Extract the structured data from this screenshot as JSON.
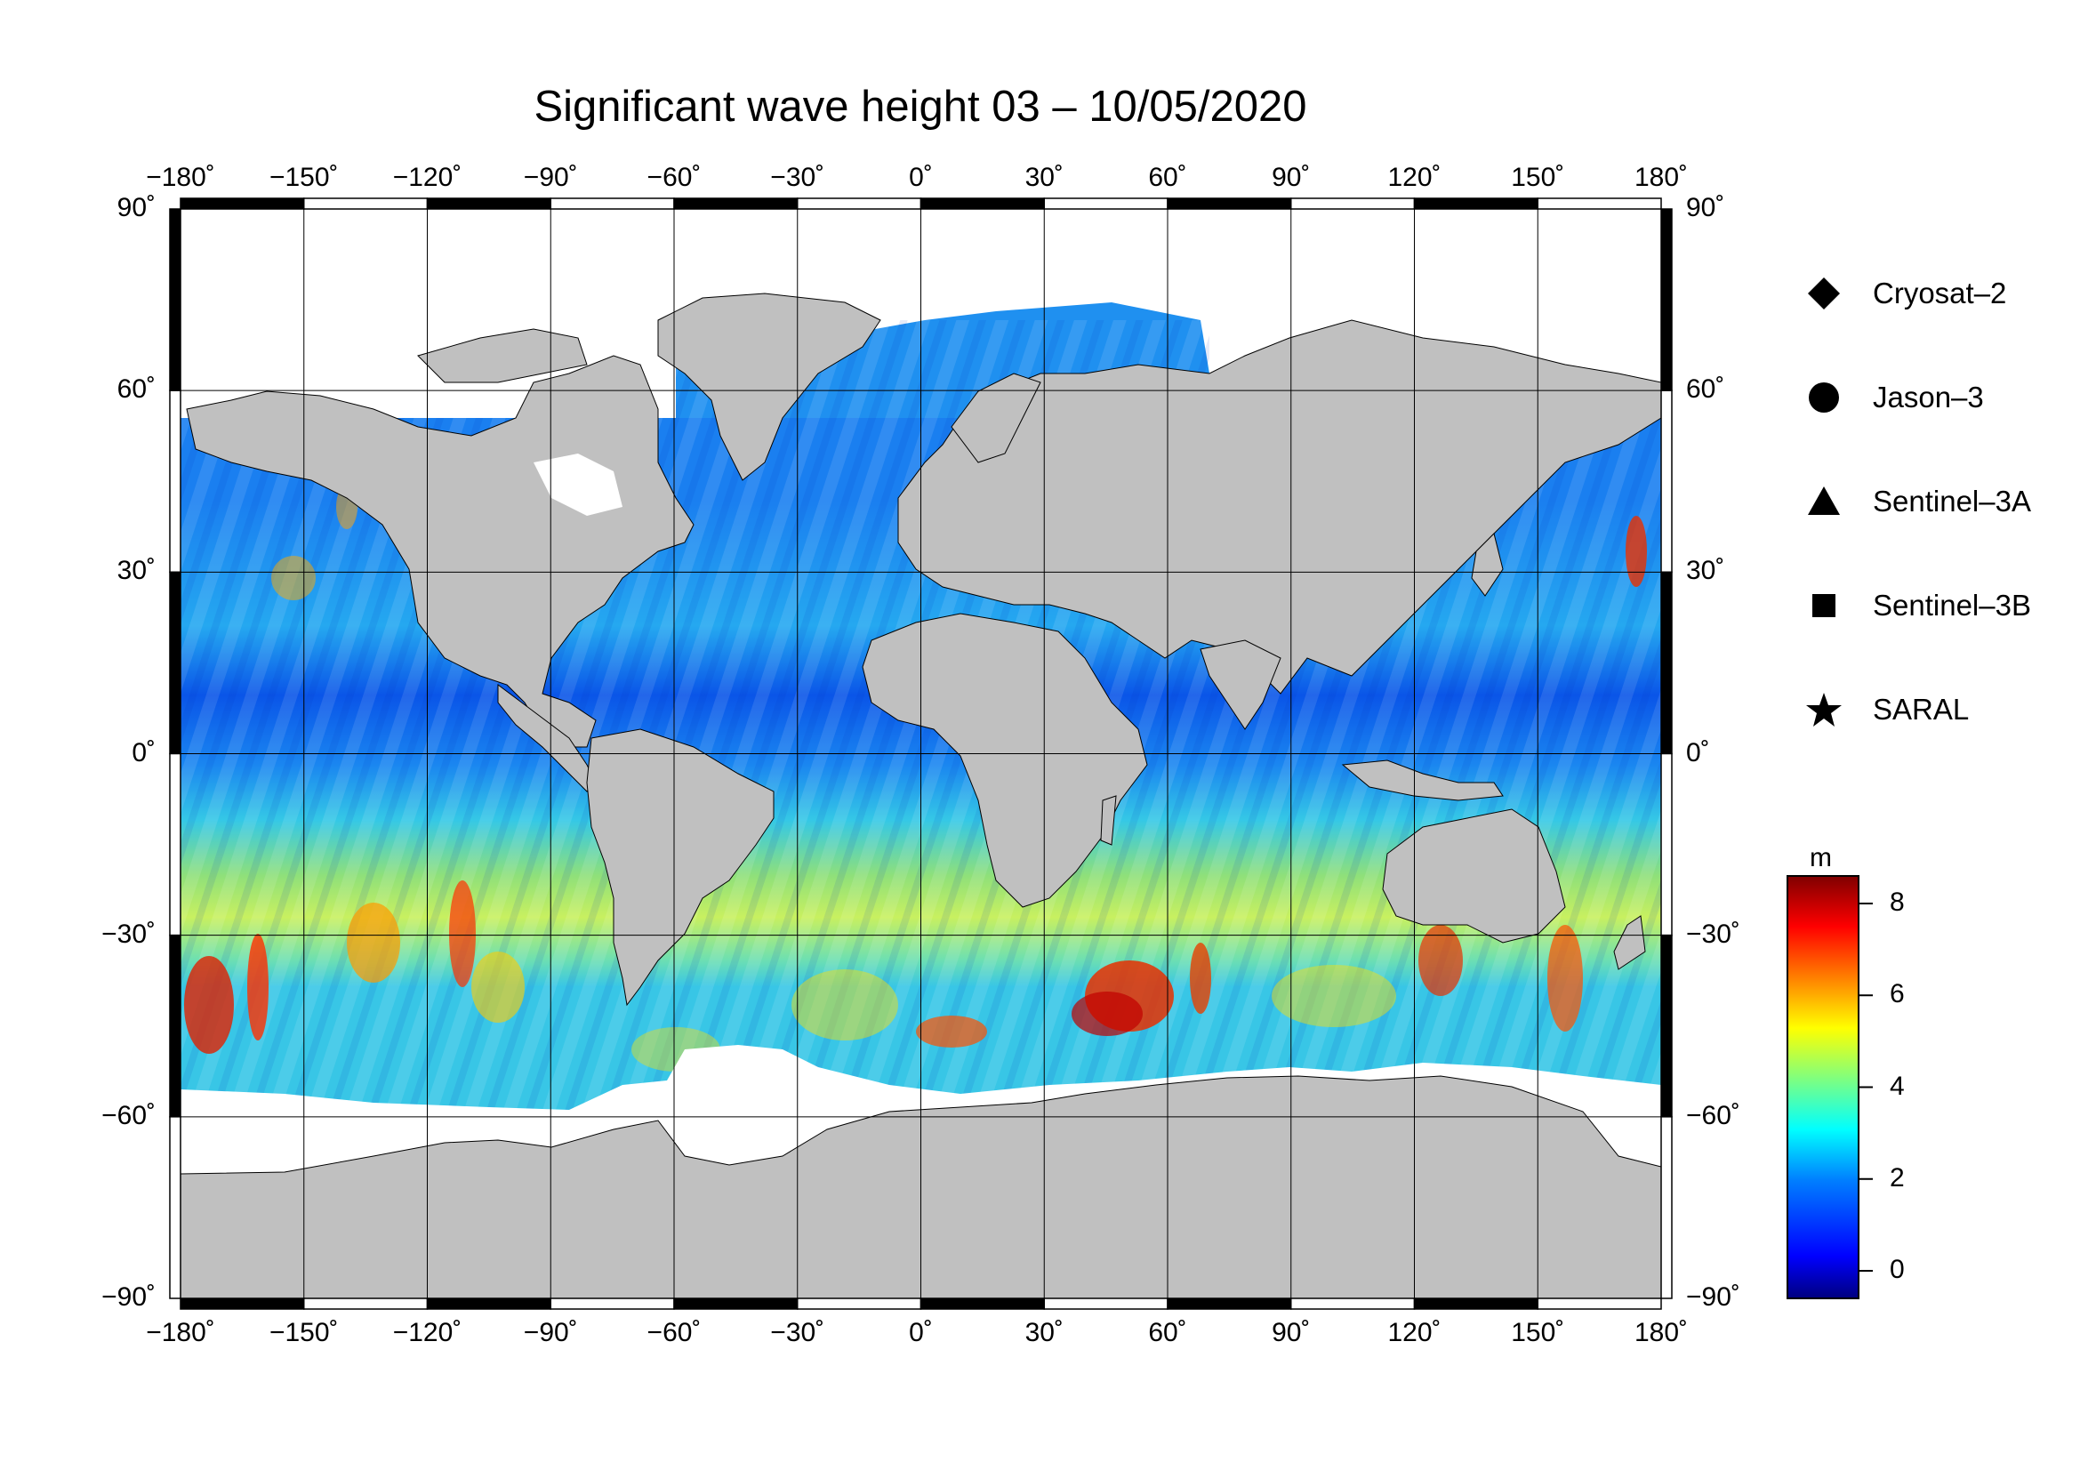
{
  "title": "Significant wave height 03 – 10/05/2020",
  "axes": {
    "top_lon_labels": [
      "−180˚",
      "−150˚",
      "−120˚",
      "−90˚",
      "−60˚",
      "−30˚",
      "0˚",
      "30˚",
      "60˚",
      "90˚",
      "120˚",
      "150˚",
      "180˚"
    ],
    "bottom_lon_labels": [
      "−180˚",
      "−150˚",
      "−120˚",
      "−90˚",
      "−60˚",
      "−30˚",
      "0˚",
      "30˚",
      "60˚",
      "90˚",
      "120˚",
      "150˚",
      "180˚"
    ],
    "lat_labels": [
      "90˚",
      "60˚",
      "30˚",
      "0˚",
      "−30˚",
      "−60˚",
      "−90˚"
    ],
    "lon_values": [
      -180,
      -150,
      -120,
      -90,
      -60,
      -30,
      0,
      30,
      60,
      90,
      120,
      150,
      180
    ],
    "lat_values": [
      90,
      60,
      30,
      0,
      -30,
      -60,
      -90
    ]
  },
  "legend": [
    {
      "label": "Cryosat–2",
      "icon": "diamond-icon"
    },
    {
      "label": "Jason–3",
      "icon": "circle-icon"
    },
    {
      "label": "Sentinel–3A",
      "icon": "triangle-icon"
    },
    {
      "label": "Sentinel–3B",
      "icon": "square-icon"
    },
    {
      "label": "SARAL",
      "icon": "star-icon"
    }
  ],
  "colorbar": {
    "unit": "m",
    "tick_labels": [
      "8",
      "6",
      "4",
      "2",
      "0"
    ],
    "tick_values": [
      8,
      6,
      4,
      2,
      0
    ],
    "range": [
      -0.6,
      8.6
    ],
    "colors": [
      "#00007f",
      "#0000ff",
      "#007fff",
      "#00ffff",
      "#7fff7f",
      "#ffff00",
      "#ff7f00",
      "#ff0000",
      "#7f0000"
    ]
  },
  "colors": {
    "land": "#c0c0c0",
    "ice": "#ffffff",
    "frame": "#000000"
  }
}
